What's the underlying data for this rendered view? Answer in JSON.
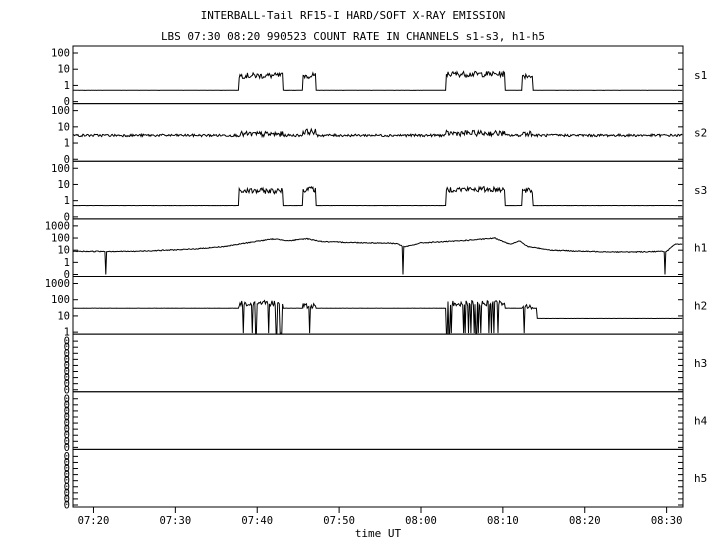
{
  "chart_data": {
    "type": "line",
    "title": "INTERBALL-Tail RF15-I HARD/SOFT X-RAY EMISSION",
    "subtitle": "LBS 07:30 08:20 990523  COUNT RATE IN CHANNELS s1-s3, h1-h5",
    "xlabel": "time UT",
    "x_tick_labels": [
      "07:20",
      "07:30",
      "07:40",
      "07:50",
      "08:00",
      "08:10",
      "08:20",
      "08:30"
    ],
    "xlim_minutes": [
      437.5,
      512.0
    ],
    "yscale": "log",
    "colors": {
      "line": "#000000",
      "background": "#ffffff"
    },
    "panels": [
      {
        "name": "s1",
        "y_tick_labels": [
          "100",
          "10",
          "1",
          "0"
        ],
        "baseline": 0.5,
        "segments": [
          {
            "x_start": 457.8,
            "x_end": 463.2,
            "level": 4
          },
          {
            "x_start": 465.6,
            "x_end": 467.2,
            "level": 4
          },
          {
            "x_start": 483.1,
            "x_end": 490.3,
            "level": 5
          },
          {
            "x_start": 492.4,
            "x_end": 493.7,
            "level": 4
          }
        ]
      },
      {
        "name": "s2",
        "y_tick_labels": [
          "100",
          "10",
          "1",
          "0"
        ],
        "baseline": 3,
        "segments": [
          {
            "x_start": 457.8,
            "x_end": 463.2,
            "level": 3.5
          },
          {
            "x_start": 465.6,
            "x_end": 467.2,
            "level": 5
          },
          {
            "x_start": 483.1,
            "x_end": 490.3,
            "level": 4
          },
          {
            "x_start": 492.4,
            "x_end": 493.7,
            "level": 4
          }
        ]
      },
      {
        "name": "s3",
        "y_tick_labels": [
          "100",
          "10",
          "1",
          "0"
        ],
        "baseline": 0.5,
        "segments": [
          {
            "x_start": 457.8,
            "x_end": 463.2,
            "level": 4
          },
          {
            "x_start": 465.6,
            "x_end": 467.2,
            "level": 5
          },
          {
            "x_start": 483.1,
            "x_end": 490.3,
            "level": 5
          },
          {
            "x_start": 492.4,
            "x_end": 493.7,
            "level": 4
          }
        ]
      },
      {
        "name": "h1",
        "y_tick_labels": [
          "1000",
          "100",
          "10",
          "1",
          "0"
        ],
        "profile": [
          [
            437.5,
            8
          ],
          [
            445,
            8
          ],
          [
            452,
            12
          ],
          [
            456,
            20
          ],
          [
            460,
            55
          ],
          [
            462,
            85
          ],
          [
            464,
            60
          ],
          [
            466,
            90
          ],
          [
            468,
            50
          ],
          [
            472,
            42
          ],
          [
            476,
            38
          ],
          [
            477,
            36
          ],
          [
            478,
            18
          ],
          [
            480,
            40
          ],
          [
            484,
            55
          ],
          [
            487,
            75
          ],
          [
            489,
            100
          ],
          [
            491,
            30
          ],
          [
            492,
            60
          ],
          [
            493,
            20
          ],
          [
            496,
            10
          ],
          [
            500,
            8
          ],
          [
            505,
            7
          ],
          [
            510,
            8
          ],
          [
            511,
            30
          ],
          [
            512,
            30
          ]
        ],
        "dropouts": [
          441.5,
          477.8,
          509.8
        ]
      },
      {
        "name": "h2",
        "y_tick_labels": [
          "1000",
          "100",
          "10",
          "1"
        ],
        "baseline": 30,
        "baseline_after": {
          "x": 494.2,
          "level": 7
        },
        "segments": [
          {
            "x_start": 457.8,
            "x_end": 463.2,
            "level": 60
          },
          {
            "x_start": 465.6,
            "x_end": 467.2,
            "level": 40
          },
          {
            "x_start": 483.1,
            "x_end": 490.3,
            "level": 60
          },
          {
            "x_start": 492.4,
            "x_end": 493.7,
            "level": 40
          }
        ]
      },
      {
        "name": "h3",
        "y_tick_labels": [
          "0",
          "0",
          "0",
          "0",
          "0",
          "0",
          "0",
          "0",
          "0"
        ],
        "empty": true
      },
      {
        "name": "h4",
        "y_tick_labels": [
          "0",
          "0",
          "0",
          "0",
          "0",
          "0",
          "0",
          "0",
          "0"
        ],
        "empty": true
      },
      {
        "name": "h5",
        "y_tick_labels": [
          "0",
          "0",
          "0",
          "0",
          "0",
          "0",
          "0",
          "0",
          "0"
        ],
        "empty": true
      }
    ]
  }
}
